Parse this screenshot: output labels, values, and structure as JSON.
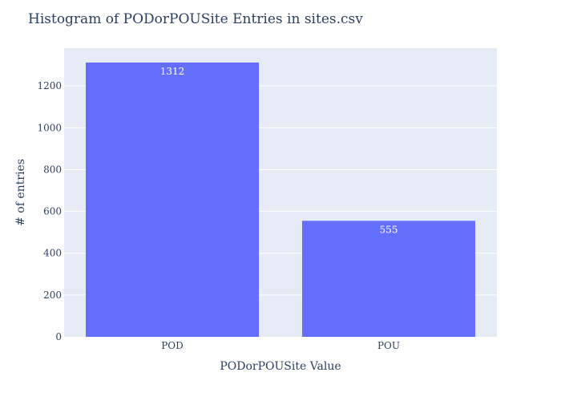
{
  "chart_data": {
    "type": "bar",
    "title": "Histogram of PODorPOUSite Entries in sites.csv",
    "xlabel": "PODorPOUSite Value",
    "ylabel": "# of entries",
    "categories": [
      "POD",
      "POU"
    ],
    "values": [
      1312,
      555
    ],
    "data_labels": [
      "1312",
      "555"
    ],
    "ylim": [
      0,
      1381
    ],
    "y_ticks": [
      0,
      200,
      400,
      600,
      800,
      1000,
      1200
    ],
    "grid": true,
    "colors": {
      "bar": "#636efa",
      "plot_bg": "#e5ecf6",
      "grid": "#ffffff",
      "text": "#2a3f5f",
      "label_text": "#ffffff"
    }
  }
}
